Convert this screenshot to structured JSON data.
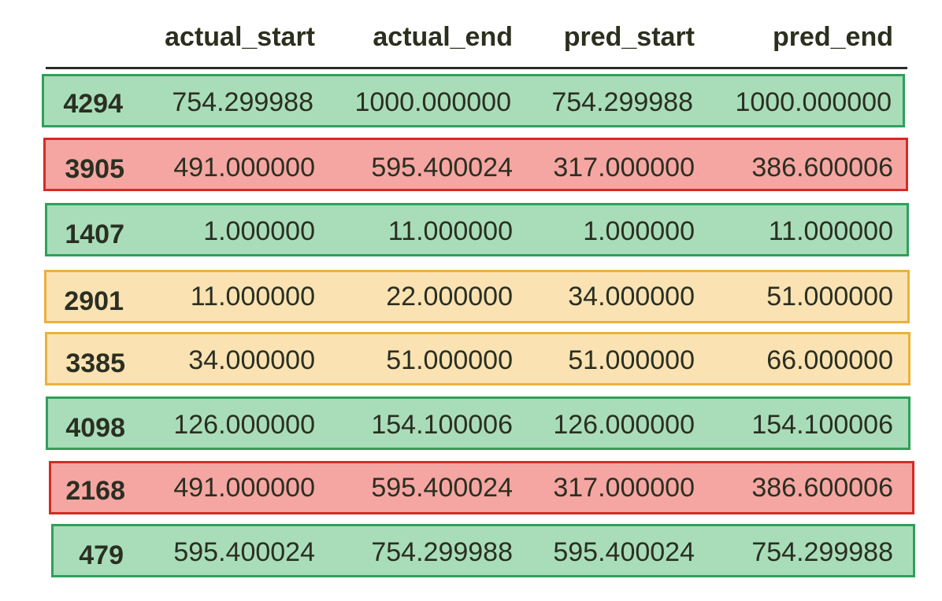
{
  "columns": [
    "actual_start",
    "actual_end",
    "pred_start",
    "pred_end"
  ],
  "colors": {
    "green_fill": "#a9ddb9",
    "green_border": "#2fa05a",
    "red_fill": "#f6a6a2",
    "red_border": "#d62a27",
    "yellow_fill": "#fbe2b2",
    "yellow_border": "#eab13d"
  },
  "rows": [
    {
      "index": "4294",
      "status": "green",
      "values": [
        "754.299988",
        "1000.000000",
        "754.299988",
        "1000.000000"
      ]
    },
    {
      "index": "3905",
      "status": "red",
      "values": [
        "491.000000",
        "595.400024",
        "317.000000",
        "386.600006"
      ]
    },
    {
      "index": "1407",
      "status": "green",
      "values": [
        "1.000000",
        "11.000000",
        "1.000000",
        "11.000000"
      ]
    },
    {
      "index": "2901",
      "status": "yellow",
      "values": [
        "11.000000",
        "22.000000",
        "34.000000",
        "51.000000"
      ]
    },
    {
      "index": "3385",
      "status": "yellow",
      "values": [
        "34.000000",
        "51.000000",
        "51.000000",
        "66.000000"
      ]
    },
    {
      "index": "4098",
      "status": "green",
      "values": [
        "126.000000",
        "154.100006",
        "126.000000",
        "154.100006"
      ]
    },
    {
      "index": "2168",
      "status": "red",
      "values": [
        "491.000000",
        "595.400024",
        "317.000000",
        "386.600006"
      ]
    },
    {
      "index": "479",
      "status": "green",
      "values": [
        "595.400024",
        "754.299988",
        "595.400024",
        "754.299988"
      ]
    }
  ]
}
